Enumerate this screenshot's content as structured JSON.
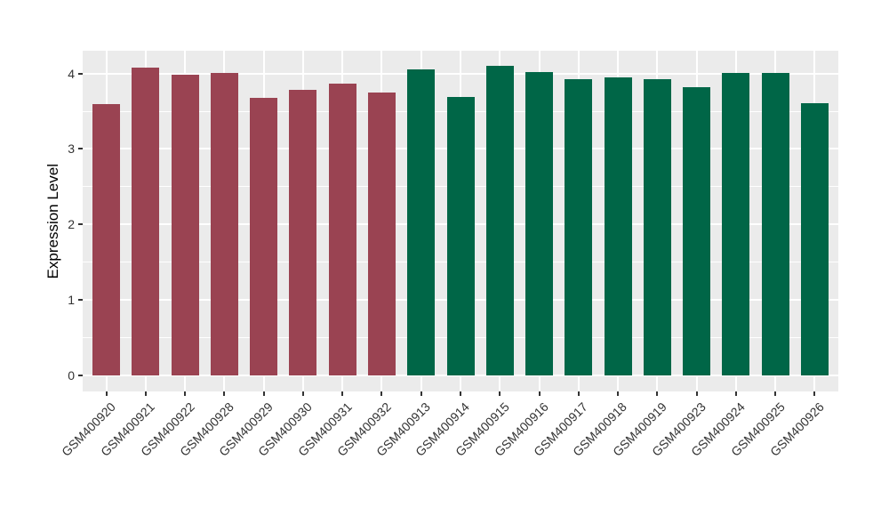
{
  "chart_data": {
    "type": "bar",
    "title": "",
    "xlabel": "",
    "ylabel": "Expression Level",
    "ylim": [
      0,
      4.3
    ],
    "yticks": [
      0,
      1,
      2,
      3,
      4
    ],
    "yticks_minor": [
      0.5,
      1.5,
      2.5,
      3.5
    ],
    "grid": "white major and minor horizontal gridlines plus vertical gridlines at bar centers, on gray panel",
    "legend_position": "none",
    "panel_background": "#EBEBEB",
    "gridline_color": "#FFFFFF",
    "tick_label_color": "#333333",
    "categories": [
      "GSM400920",
      "GSM400921",
      "GSM400922",
      "GSM400928",
      "GSM400929",
      "GSM400930",
      "GSM400931",
      "GSM400932",
      "GSM400913",
      "GSM400914",
      "GSM400915",
      "GSM400916",
      "GSM400917",
      "GSM400918",
      "GSM400919",
      "GSM400923",
      "GSM400924",
      "GSM400925",
      "GSM400926"
    ],
    "values": [
      3.6,
      4.08,
      3.98,
      4.01,
      3.68,
      3.78,
      3.87,
      3.75,
      4.05,
      3.69,
      4.1,
      4.02,
      3.93,
      3.95,
      3.92,
      3.82,
      4.01,
      4.01,
      3.61
    ],
    "groups": [
      "group1",
      "group1",
      "group1",
      "group1",
      "group1",
      "group1",
      "group1",
      "group1",
      "group2",
      "group2",
      "group2",
      "group2",
      "group2",
      "group2",
      "group2",
      "group2",
      "group2",
      "group2",
      "group2"
    ],
    "group_colors": {
      "group1": "#9A4352",
      "group2": "#006647"
    }
  }
}
